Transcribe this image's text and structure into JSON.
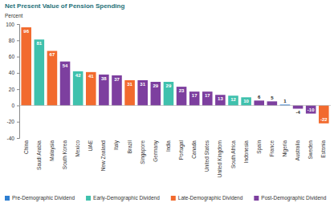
{
  "chart_data": {
    "type": "bar",
    "title": "Net Present Value of Pension Spending",
    "y_label": "Percent",
    "categories": [
      "China",
      "Saudi Arabia",
      "Malaysia",
      "South Korea",
      "Mexico",
      "UAE",
      "New Zealand",
      "Italy",
      "Brazil",
      "Singapore",
      "Germany",
      "India",
      "Portugal",
      "Canada",
      "United States",
      "United Kingdom",
      "South Africa",
      "Indonesia",
      "Spain",
      "France",
      "Nigeria",
      "Australia",
      "Sweden",
      "Estonia"
    ],
    "series": [
      {
        "name": "Pre-Demographic Dividend",
        "color": "#2f7fd1",
        "values": [
          null,
          null,
          null,
          null,
          null,
          null,
          null,
          null,
          null,
          null,
          null,
          null,
          null,
          null,
          null,
          null,
          null,
          null,
          null,
          null,
          1,
          null,
          null,
          null
        ]
      },
      {
        "name": "Early-Demographic Dividend",
        "color": "#3fc1ad",
        "values": [
          null,
          81,
          null,
          null,
          42,
          null,
          null,
          null,
          null,
          null,
          null,
          29,
          null,
          null,
          null,
          null,
          12,
          10,
          null,
          null,
          null,
          null,
          null,
          null
        ]
      },
      {
        "name": "Late-Demographic Dividend",
        "color": "#f26a2e",
        "values": [
          96,
          null,
          67,
          null,
          null,
          41,
          null,
          null,
          31,
          null,
          null,
          null,
          null,
          null,
          null,
          null,
          null,
          null,
          null,
          null,
          null,
          null,
          null,
          -22
        ]
      },
      {
        "name": "Post-Demographic Dividend",
        "color": "#7d3f9f",
        "values": [
          null,
          null,
          null,
          54,
          null,
          null,
          38,
          37,
          null,
          31,
          29,
          null,
          23,
          17,
          17,
          13,
          null,
          null,
          6,
          5,
          null,
          -4,
          -10,
          null
        ]
      }
    ],
    "stacked": true,
    "data_labels": true,
    "ylim": [
      -40,
      100
    ],
    "yticks": [
      -40,
      -20,
      0,
      20,
      40,
      60,
      80,
      100
    ],
    "grid": false,
    "legend": "bottom"
  }
}
